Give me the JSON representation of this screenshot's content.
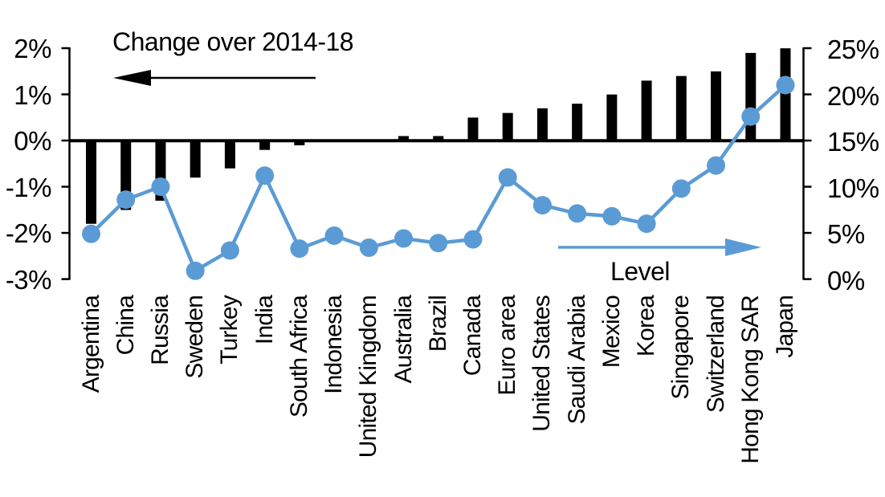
{
  "chart_data": {
    "type": "combo-bar-line-dual-axis",
    "categories": [
      "Argentina",
      "China",
      "Russia",
      "Sweden",
      "Turkey",
      "India",
      "South Africa",
      "Indonesia",
      "United Kingdom",
      "Australia",
      "Brazil",
      "Canada",
      "Euro area",
      "United States",
      "Saudi Arabia",
      "Mexico",
      "Korea",
      "Singapore",
      "Switzerland",
      "Hong Kong SAR",
      "Japan"
    ],
    "series": [
      {
        "name": "Change over 2014-18",
        "type": "bar",
        "axis": "left",
        "color": "#000000",
        "unit": "%",
        "values": [
          -1.8,
          -1.5,
          -1.3,
          -0.8,
          -0.6,
          -0.2,
          -0.1,
          0,
          0,
          0.1,
          0.1,
          0.5,
          0.6,
          0.7,
          0.8,
          1.0,
          1.3,
          1.4,
          1.5,
          1.9,
          2.0
        ]
      },
      {
        "name": "Level",
        "type": "line",
        "axis": "right",
        "color": "#5B9BD5",
        "unit": "%",
        "values": [
          4.9,
          8.6,
          10.0,
          0.9,
          3.1,
          11.2,
          3.3,
          4.7,
          3.4,
          4.4,
          3.9,
          4.3,
          11.0,
          8.0,
          7.1,
          6.8,
          6.0,
          9.8,
          12.3,
          17.6,
          21.0
        ]
      }
    ],
    "left_axis": {
      "tick_labels": [
        "2%",
        "1%",
        "0%",
        "-1%",
        "-2%",
        "-3%"
      ],
      "max": 2,
      "min": -3
    },
    "right_axis": {
      "tick_labels": [
        "25%",
        "20%",
        "15%",
        "10%",
        "5%",
        "0%"
      ],
      "max": 25,
      "min": 0
    },
    "annotations": [
      {
        "text": "Change over 2014-18",
        "arrow_direction": "left",
        "color": "#000000"
      },
      {
        "text": "Level",
        "arrow_direction": "right",
        "color": "#5B9BD5"
      }
    ],
    "legend_position": "none",
    "grid": false
  }
}
